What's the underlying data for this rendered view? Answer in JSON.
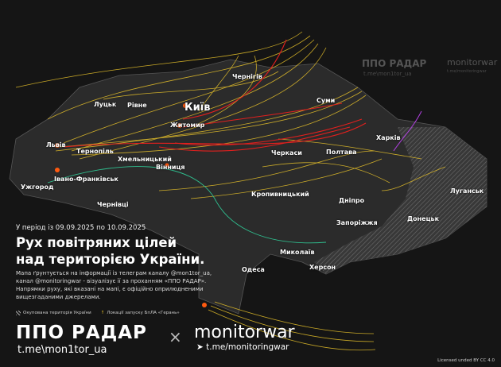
{
  "header": {
    "period": "У період із 09.09.2025 по 10.09.2025",
    "title_line1": "Рух повітряних цілей",
    "title_line2": "над територією України.",
    "description": "Мапа ґрунтується на інформації із телеграм каналу @mon1tor_ua, канал @monitoringwar - візуалізує її за проханням «ППО РАДАР». Напрямки руху, які вказані на мапі, є офіційно оприлюдненими вищезгаданими джерелами."
  },
  "legend": {
    "occupied": "Окупована територія України",
    "launch_sites": "Локації запуску БпЛА «Герань»"
  },
  "brands": {
    "ppo_name": "ППО РАДАР",
    "ppo_link": "t.me\\mon1tor_ua",
    "separator": "×",
    "monitor_name": "monitorwar",
    "monitor_link": "t.me/monitoringwar"
  },
  "watermark": {
    "ppo_name": "ППО РАДАР",
    "ppo_link": "t.me\\mon1tor_ua",
    "monitor_name": "monitorwar",
    "monitor_link": "t.me/monitoringwar"
  },
  "license": "Licensed unded BY CC 4.0",
  "cities": {
    "chernihiv": "Чернігів",
    "lutsk": "Луцьк",
    "rivne": "Рівне",
    "kyiv": "Київ",
    "sumy": "Суми",
    "zhytomyr": "Житомир",
    "lviv": "Львів",
    "ternopil": "Тернопіль",
    "khmelnytskyi": "Хмельницький",
    "cherkasy": "Черкаси",
    "poltava": "Полтава",
    "kharkiv": "Харків",
    "vinnytsia": "Вінниця",
    "ivano_frankivsk": "Івано-Франківськ",
    "uzhhorod": "Ужгород",
    "chernivtsi": "Чернівці",
    "kropyvnytskyi": "Кропивницький",
    "dnipro": "Дніпро",
    "luhansk": "Луганськ",
    "donetsk": "Донецьк",
    "zaporizhzhia": "Запоріжжя",
    "mykolaiv": "Миколаїв",
    "kherson": "Херсон",
    "odesa": "Одеса"
  },
  "colors": {
    "background": "#151515",
    "land": "#2b2b2b",
    "drone_tracks": "#e8c22a",
    "missile_tracks": "#e0201e",
    "other_tracks": "#2fbf8f",
    "purple_tracks": "#b040e0",
    "explosion": "#ff5a10"
  }
}
